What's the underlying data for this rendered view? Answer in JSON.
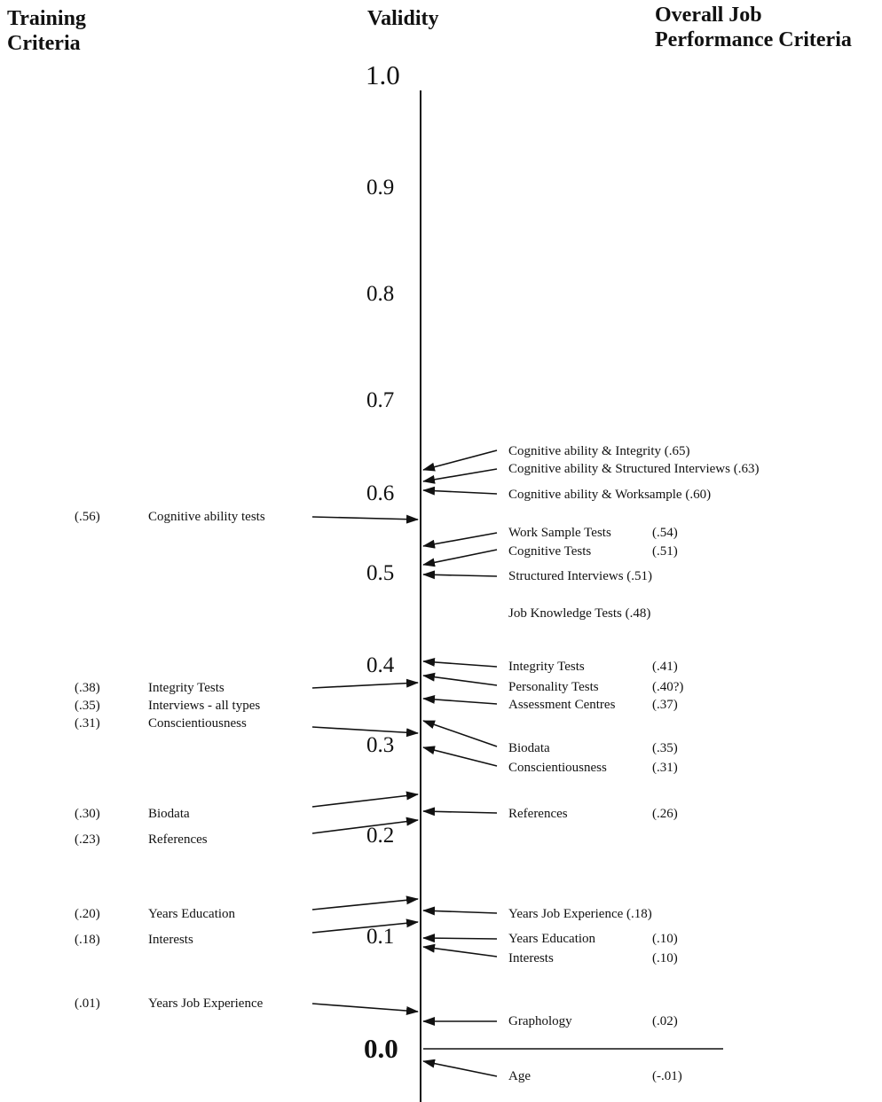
{
  "headers": {
    "training_line1": "Training",
    "training_line2": "Criteria",
    "validity": "Validity",
    "overall_line1": "Overall Job",
    "overall_line2": "Performance Criteria"
  },
  "axis": {
    "ticks": [
      "1.0",
      "0.9",
      "0.8",
      "0.7",
      "0.6",
      "0.5",
      "0.4",
      "0.3",
      "0.2",
      "0.1",
      "0.0"
    ]
  },
  "chart_data": {
    "type": "scatter",
    "title": "",
    "ylabel": "Validity",
    "ylim": [
      -0.05,
      1.0
    ],
    "series": [
      {
        "name": "Training Criteria",
        "points": [
          {
            "label": "Cognitive ability tests",
            "value_text": "(.56)",
            "y": 0.56
          },
          {
            "label": "Integrity Tests",
            "value_text": "(.38)",
            "y": 0.38
          },
          {
            "label": "Interviews - all  types",
            "value_text": "(.35)",
            "y": 0.35
          },
          {
            "label": "Conscientiousness",
            "value_text": "(.31)",
            "y": 0.31
          },
          {
            "label": "Biodata",
            "value_text": "(.30)",
            "y": 0.3
          },
          {
            "label": "References",
            "value_text": "(.23)",
            "y": 0.23
          },
          {
            "label": "Years Education",
            "value_text": "(.20)",
            "y": 0.2
          },
          {
            "label": "Interests",
            "value_text": "(.18)",
            "y": 0.18
          },
          {
            "label": "Years Job Experience",
            "value_text": "(.01)",
            "y": 0.01
          }
        ]
      },
      {
        "name": "Overall Job Performance Criteria",
        "points": [
          {
            "label": "Cognitive ability & Integrity (.65)",
            "value_text": "",
            "y": 0.65
          },
          {
            "label": "Cognitive ability & Structured Interviews (.63)",
            "value_text": "",
            "y": 0.63
          },
          {
            "label": "Cognitive ability & Worksample (.60)",
            "value_text": "",
            "y": 0.6
          },
          {
            "label": "Work Sample Tests",
            "value_text": "(.54)",
            "y": 0.54
          },
          {
            "label": "Cognitive Tests",
            "value_text": "(.51)",
            "y": 0.51
          },
          {
            "label": "Structured Interviews",
            "value_text": "(.51)",
            "y": 0.51
          },
          {
            "label": "Job Knowledge Tests",
            "value_text": "(.48)",
            "y": 0.48
          },
          {
            "label": "Integrity Tests",
            "value_text": "(.41)",
            "y": 0.41
          },
          {
            "label": "Personality Tests",
            "value_text": "(.40?)",
            "y": 0.4
          },
          {
            "label": "Assessment Centres",
            "value_text": "(.37)",
            "y": 0.37
          },
          {
            "label": "Biodata",
            "value_text": "(.35)",
            "y": 0.35
          },
          {
            "label": "Conscientiousness",
            "value_text": "(.31)",
            "y": 0.31
          },
          {
            "label": "References",
            "value_text": "(.26)",
            "y": 0.26
          },
          {
            "label": "Years Job Experience",
            "value_text": "(.18)",
            "y": 0.18
          },
          {
            "label": "Years Education",
            "value_text": "(.10)",
            "y": 0.1
          },
          {
            "label": "Interests",
            "value_text": "(.10)",
            "y": 0.1
          },
          {
            "label": "Graphology",
            "value_text": "(.02)",
            "y": 0.02
          },
          {
            "label": "Age",
            "value_text": "(-.01)",
            "y": -0.01
          }
        ]
      }
    ]
  }
}
